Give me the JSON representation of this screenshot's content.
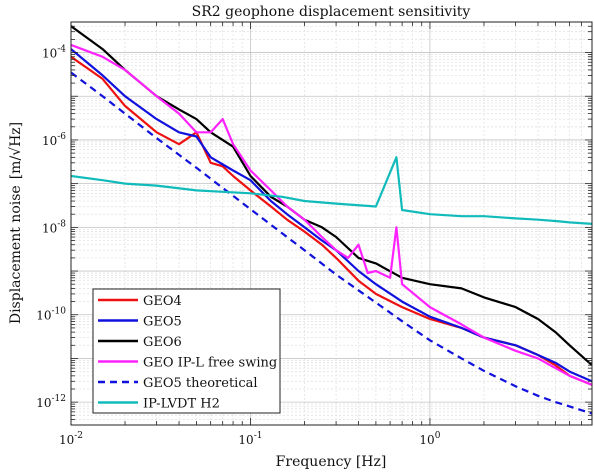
{
  "chart_data": {
    "type": "line",
    "title": "SR2 geophone displacement sensitivity",
    "xlabel": "Frequency [Hz]",
    "ylabel": "Displacement noise",
    "ylabel_unit": "[m/√Hz]",
    "xscale": "log",
    "yscale": "log",
    "xlim": [
      0.01,
      8
    ],
    "ylim": [
      3e-13,
      0.0005
    ],
    "grid": true,
    "legend_position": "bottom-left",
    "x_ticks": [
      {
        "value": 0.01,
        "label": "10",
        "exp": "-2"
      },
      {
        "value": 0.1,
        "label": "10",
        "exp": "-1"
      },
      {
        "value": 1,
        "label": "10",
        "exp": "0"
      }
    ],
    "y_ticks": [
      {
        "value": 1e-12,
        "label": "10",
        "exp": "-12"
      },
      {
        "value": 1e-10,
        "label": "10",
        "exp": "-10"
      },
      {
        "value": 1e-08,
        "label": "10",
        "exp": "-8"
      },
      {
        "value": 1e-06,
        "label": "10",
        "exp": "-6"
      },
      {
        "value": 0.0001,
        "label": "10",
        "exp": "-4"
      }
    ],
    "series": [
      {
        "name": "GEO4",
        "color": "#ee1111",
        "dash": "solid",
        "x": [
          0.01,
          0.015,
          0.02,
          0.03,
          0.04,
          0.05,
          0.06,
          0.07,
          0.08,
          0.1,
          0.13,
          0.16,
          0.2,
          0.25,
          0.3,
          0.4,
          0.5,
          0.7,
          1,
          1.5,
          2,
          3,
          4,
          5,
          6,
          8
        ],
        "y": [
          8e-05,
          2.5e-05,
          6e-06,
          1.5e-06,
          8e-07,
          1.5e-06,
          3e-07,
          2.5e-07,
          1.5e-07,
          7e-08,
          3e-08,
          1.5e-08,
          8e-09,
          4e-09,
          2e-09,
          6e-10,
          3e-10,
          1.5e-10,
          8e-11,
          5e-11,
          3e-11,
          2e-11,
          1.2e-11,
          7e-12,
          4e-12,
          2.5e-12
        ]
      },
      {
        "name": "GEO5",
        "color": "#1111dd",
        "dash": "solid",
        "x": [
          0.01,
          0.015,
          0.02,
          0.03,
          0.04,
          0.05,
          0.06,
          0.08,
          0.1,
          0.13,
          0.16,
          0.2,
          0.25,
          0.3,
          0.4,
          0.5,
          0.7,
          1,
          1.5,
          2,
          3,
          4,
          5,
          6,
          8
        ],
        "y": [
          0.00012,
          3e-05,
          1e-05,
          3e-06,
          1.5e-06,
          1.2e-06,
          4e-07,
          2e-07,
          1.2e-07,
          4e-08,
          2e-08,
          1e-08,
          5e-09,
          3e-09,
          1e-09,
          5e-10,
          2e-10,
          9e-11,
          5e-11,
          3e-11,
          2e-11,
          1.2e-11,
          8e-12,
          5e-12,
          3e-12
        ]
      },
      {
        "name": "GEO6",
        "color": "#000000",
        "dash": "solid",
        "x": [
          0.01,
          0.015,
          0.02,
          0.03,
          0.04,
          0.05,
          0.06,
          0.08,
          0.1,
          0.13,
          0.16,
          0.2,
          0.25,
          0.3,
          0.4,
          0.5,
          0.7,
          1,
          1.5,
          2,
          3,
          4,
          5,
          6,
          8
        ],
        "y": [
          0.0004,
          0.00012,
          4e-05,
          1e-05,
          5e-06,
          3e-06,
          1.5e-06,
          7e-07,
          1.5e-07,
          5e-08,
          3e-08,
          1.5e-08,
          1e-08,
          6e-09,
          2e-09,
          1.5e-09,
          7e-10,
          5e-10,
          4e-10,
          2.5e-10,
          1.5e-10,
          8e-11,
          4e-11,
          2e-11,
          7e-12
        ]
      },
      {
        "name": "GEO IP-L free swing",
        "color": "#ff22ff",
        "dash": "solid",
        "x": [
          0.01,
          0.015,
          0.02,
          0.03,
          0.04,
          0.05,
          0.06,
          0.07,
          0.08,
          0.1,
          0.13,
          0.16,
          0.2,
          0.25,
          0.3,
          0.35,
          0.4,
          0.45,
          0.5,
          0.6,
          0.65,
          0.7,
          1,
          1.5,
          2,
          3,
          4,
          5,
          6,
          8
        ],
        "y": [
          0.00015,
          8e-05,
          4e-05,
          1e-05,
          4e-06,
          1.5e-06,
          1.5e-06,
          3e-06,
          8e-07,
          2e-07,
          7e-08,
          3e-08,
          1.5e-08,
          6e-09,
          3e-09,
          2e-09,
          4e-09,
          9e-10,
          1e-09,
          7e-10,
          1e-08,
          5e-10,
          1.5e-10,
          6e-11,
          3e-11,
          1.5e-11,
          1e-11,
          6e-12,
          4e-12,
          2.5e-12
        ]
      },
      {
        "name": "GEO5 theoretical",
        "color": "#1111dd",
        "dash": "dashed",
        "x": [
          0.01,
          0.015,
          0.02,
          0.03,
          0.05,
          0.07,
          0.1,
          0.15,
          0.2,
          0.3,
          0.5,
          0.7,
          1,
          1.5,
          2,
          3,
          4,
          5,
          6,
          8
        ],
        "y": [
          3.5e-05,
          1e-05,
          4e-06,
          1.1e-06,
          2.3e-07,
          8e-08,
          2.6e-08,
          7.3e-09,
          3e-09,
          8.3e-10,
          1.9e-10,
          7.1e-11,
          2.6e-11,
          1e-11,
          5.2e-12,
          2.3e-12,
          1.4e-12,
          1e-12,
          8e-13,
          5.5e-13
        ]
      },
      {
        "name": "IP-LVDT H2",
        "color": "#11bbbb",
        "dash": "solid",
        "x": [
          0.01,
          0.015,
          0.02,
          0.03,
          0.05,
          0.07,
          0.1,
          0.15,
          0.2,
          0.3,
          0.5,
          0.65,
          0.7,
          1,
          1.5,
          2,
          3,
          4,
          5,
          6,
          8
        ],
        "y": [
          1.5e-07,
          1.2e-07,
          1e-07,
          9e-08,
          7e-08,
          6.5e-08,
          6e-08,
          5e-08,
          4e-08,
          3.5e-08,
          3e-08,
          4e-07,
          2.5e-08,
          2e-08,
          1.8e-08,
          1.8e-08,
          1.6e-08,
          1.5e-08,
          1.4e-08,
          1.3e-08,
          1.2e-08
        ]
      }
    ]
  }
}
